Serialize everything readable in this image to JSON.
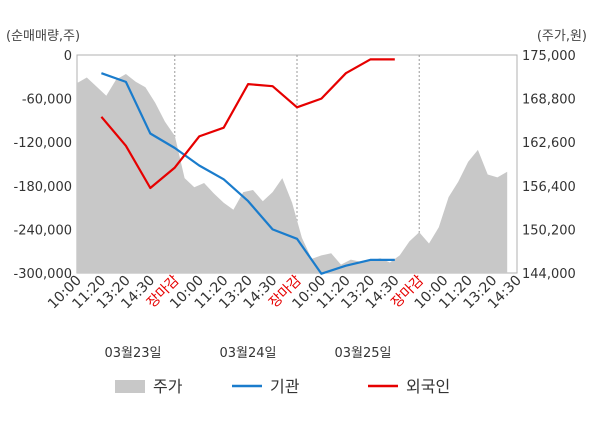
{
  "chart_data": {
    "type": "line",
    "left_axis_unit": "(순매매량,주)",
    "right_axis_unit": "(주가,원)",
    "left_axis": {
      "ylim": [
        -300000,
        0
      ],
      "ticks": [
        "0",
        "-60,000",
        "-120,000",
        "-180,000",
        "-240,000",
        "-300,000"
      ]
    },
    "right_axis": {
      "ylim": [
        144000,
        175000
      ],
      "ticks": [
        "175,000",
        "168,800",
        "162,600",
        "156,400",
        "150,200",
        "144,000"
      ]
    },
    "x_tick_labels": [
      "10:00",
      "11:20",
      "13:20",
      "14:30",
      "장마감",
      "10:00",
      "11:20",
      "13:20",
      "14:30",
      "장마감",
      "10:00",
      "11:20",
      "13:20",
      "14:30",
      "장마감",
      "10:00",
      "11:20",
      "13:20",
      "14:30"
    ],
    "x_close_label": "장마감",
    "date_labels": [
      "03월23일",
      "03월24일",
      "03월25일"
    ],
    "grid": true,
    "legend_position": "bottom",
    "series": [
      {
        "name": "주가",
        "kind": "area",
        "color": "#c8c8c8",
        "x": [
          0,
          0.4,
          0.8,
          1.2,
          1.6,
          2.0,
          2.4,
          2.8,
          3.2,
          3.6,
          4.0,
          4.4,
          4.8,
          5.2,
          5.6,
          6.0,
          6.4,
          6.8,
          7.2,
          7.6,
          8.0,
          8.4,
          8.8,
          9.2,
          9.6,
          10.0,
          10.4,
          10.8,
          11.2,
          11.6,
          12.0,
          12.4,
          12.8,
          13.2,
          13.6,
          14.0,
          14.4,
          14.8,
          15.2,
          15.6,
          16.0,
          16.4,
          16.8,
          17.2,
          17.6
        ],
        "values": [
          171000,
          171800,
          170500,
          169200,
          171500,
          172300,
          171200,
          170400,
          168200,
          165500,
          163500,
          157500,
          156200,
          156800,
          155300,
          154000,
          153000,
          155500,
          155800,
          154200,
          155500,
          157500,
          154000,
          149000,
          146000,
          146500,
          146800,
          145200,
          145900,
          145600,
          145700,
          146100,
          145500,
          146500,
          148500,
          149800,
          148200,
          150500,
          154800,
          157000,
          159800,
          161500,
          158000,
          157600,
          158400
        ]
      },
      {
        "name": "기관",
        "kind": "line",
        "color": "#1a7ccc",
        "x": [
          1,
          2,
          3,
          4,
          5,
          6,
          7,
          8,
          9,
          10,
          11,
          12,
          13
        ],
        "values": [
          -25000,
          -37000,
          -108000,
          -128000,
          -152000,
          -171000,
          -201000,
          -240000,
          -253000,
          -301000,
          -290000,
          -282000,
          -282000
        ]
      },
      {
        "name": "외국인",
        "kind": "line",
        "color": "#e60000",
        "x": [
          1,
          2,
          3,
          4,
          5,
          6,
          7,
          8,
          9,
          10,
          11,
          12,
          13
        ],
        "values": [
          -85000,
          -125000,
          -183000,
          -155000,
          -112000,
          -100000,
          -40000,
          -43000,
          -72000,
          -60000,
          -25000,
          -6000,
          -6000
        ]
      }
    ]
  }
}
